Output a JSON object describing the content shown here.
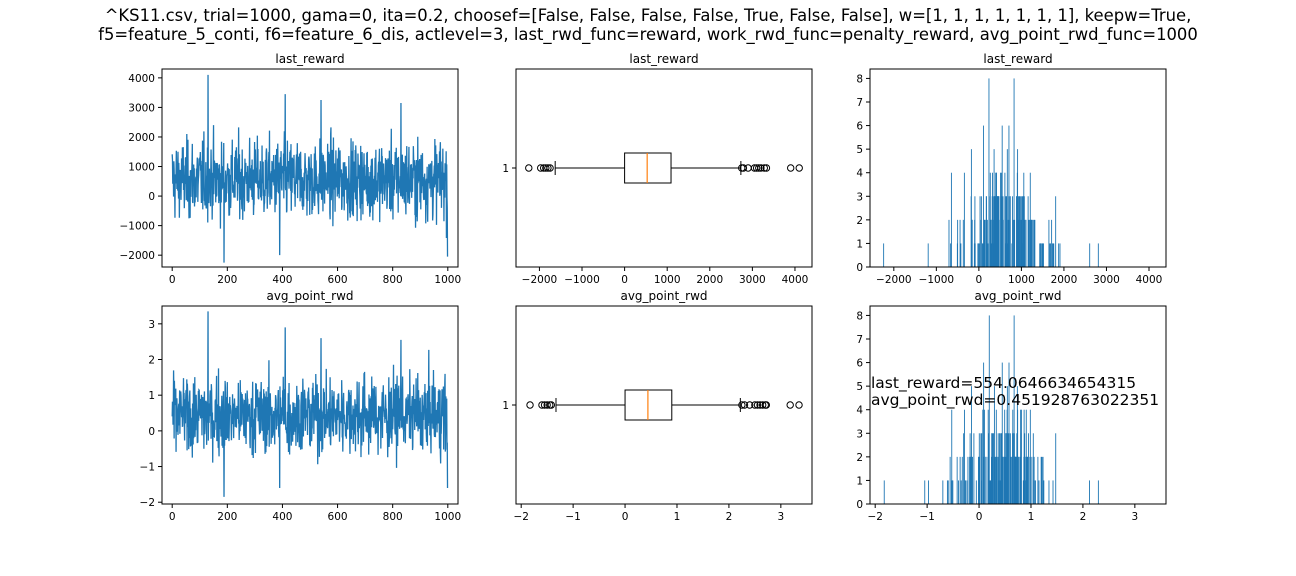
{
  "figure": {
    "title_line1": "^KS11.csv, trial=1000, gama=0, ita=0.2, choosef=[False, False, False, False, True, False, False], w=[1, 1, 1, 1, 1, 1, 1], keepw=True,",
    "title_line2": "f5=feature_5_conti, f6=feature_6_dis, actlevel=3, last_rwd_func=reward, work_rwd_func=penalty_reward, avg_point_rwd_func=1000",
    "annotation_line1": "last_reward=554.0646634654315",
    "annotation_line2": "avg_point_rwd=0.451928763022351",
    "colors": {
      "series": "#1f77b4",
      "median": "#ff7f0e",
      "axes": "#000000"
    }
  },
  "chart_data": [
    {
      "id": "series-last-reward",
      "type": "line",
      "title": "last_reward",
      "xlim": [
        -37,
        1037
      ],
      "ylim": [
        -2400,
        4300
      ],
      "xticks": [
        0,
        200,
        400,
        600,
        800,
        1000
      ],
      "xtick_labels": [
        "0",
        "200",
        "400",
        "600",
        "800",
        "1000"
      ],
      "yticks": [
        -2000,
        -1000,
        0,
        1000,
        2000,
        3000,
        4000
      ],
      "ytick_labels": [
        "−2000",
        "−1000",
        "0",
        "1000",
        "2000",
        "3000",
        "4000"
      ],
      "n_points": 1000,
      "mean": 554,
      "spread": 680,
      "min": -2250,
      "max": 4100,
      "extremes": [
        [
          130,
          4100
        ],
        [
          188,
          -2250
        ],
        [
          410,
          3450
        ],
        [
          540,
          3250
        ],
        [
          830,
          3150
        ],
        [
          1000,
          -2050
        ],
        [
          390,
          -2000
        ]
      ]
    },
    {
      "id": "box-last-reward",
      "type": "box",
      "title": "last_reward",
      "xlim": [
        -2550,
        4400
      ],
      "ylim": [
        0.5,
        1.5
      ],
      "xticks": [
        -2000,
        -1000,
        0,
        1000,
        2000,
        3000,
        4000
      ],
      "xtick_labels": [
        "−2000",
        "−1000",
        "0",
        "1000",
        "2000",
        "3000",
        "4000"
      ],
      "yticks": [
        1
      ],
      "ytick_labels": [
        "1"
      ],
      "box": {
        "q1": 0,
        "median": 530,
        "q3": 1090,
        "whisker_low": -1630,
        "whisker_high": 2730
      },
      "fliers": [
        -2250,
        -1970,
        -1900,
        -1850,
        -1800,
        -1750,
        2750,
        2790,
        2900,
        3050,
        3100,
        3150,
        3200,
        3280,
        3330,
        3900,
        4100
      ]
    },
    {
      "id": "hist-last-reward",
      "type": "bar",
      "title": "last_reward",
      "xlim": [
        -2560,
        4400
      ],
      "ylim": [
        0,
        8.4
      ],
      "xticks": [
        -2000,
        -1000,
        0,
        1000,
        2000,
        3000,
        4000
      ],
      "xtick_labels": [
        "−2000",
        "−1000",
        "0",
        "1000",
        "2000",
        "3000",
        "4000"
      ],
      "yticks": [
        0,
        1,
        2,
        3,
        4,
        5,
        6,
        7,
        8
      ],
      "ytick_labels": [
        "0",
        "1",
        "2",
        "3",
        "4",
        "5",
        "6",
        "7",
        "8"
      ],
      "range": [
        -2250,
        4100
      ],
      "bins": 1000,
      "center": 554,
      "sigma": 620,
      "peaks": [
        [
          230,
          8
        ],
        [
          820,
          8
        ],
        [
          100,
          6
        ],
        [
          540,
          6
        ],
        [
          700,
          6
        ],
        [
          -180,
          5
        ],
        [
          350,
          5
        ],
        [
          660,
          5
        ],
        [
          900,
          5
        ],
        [
          1200,
          4
        ],
        [
          -650,
          4
        ],
        [
          1050,
          4
        ],
        [
          -350,
          4
        ],
        [
          1800,
          3
        ],
        [
          -2250,
          1
        ],
        [
          2800,
          1
        ],
        [
          -1200,
          1
        ],
        [
          2600,
          1
        ]
      ]
    },
    {
      "id": "series-avg-point-rwd",
      "type": "line",
      "title": "avg_point_rwd",
      "xlim": [
        -37,
        1037
      ],
      "ylim": [
        -2.05,
        3.5
      ],
      "xticks": [
        0,
        200,
        400,
        600,
        800,
        1000
      ],
      "xtick_labels": [
        "0",
        "200",
        "400",
        "600",
        "800",
        "1000"
      ],
      "yticks": [
        -2,
        -1,
        0,
        1,
        2,
        3
      ],
      "ytick_labels": [
        "−2",
        "−1",
        "0",
        "1",
        "2",
        "3"
      ],
      "n_points": 1000,
      "mean": 0.45,
      "spread": 0.55,
      "min": -1.85,
      "max": 3.35,
      "extremes": [
        [
          130,
          3.35
        ],
        [
          188,
          -1.85
        ],
        [
          410,
          2.9
        ],
        [
          540,
          2.6
        ],
        [
          830,
          2.55
        ],
        [
          1000,
          -1.6
        ],
        [
          390,
          -1.6
        ]
      ]
    },
    {
      "id": "box-avg-point-rwd",
      "type": "box",
      "title": "avg_point_rwd",
      "xlim": [
        -2.1,
        3.6
      ],
      "ylim": [
        0.5,
        1.5
      ],
      "xticks": [
        -2,
        -1,
        0,
        1,
        2,
        3
      ],
      "xtick_labels": [
        "−2",
        "−1",
        "0",
        "1",
        "2",
        "3"
      ],
      "yticks": [
        1
      ],
      "ytick_labels": [
        "1"
      ],
      "box": {
        "q1": 0,
        "median": 0.44,
        "q3": 0.9,
        "whisker_low": -1.33,
        "whisker_high": 2.22
      },
      "fliers": [
        -1.83,
        -1.6,
        -1.55,
        -1.5,
        -1.45,
        -1.42,
        2.25,
        2.3,
        2.4,
        2.5,
        2.55,
        2.6,
        2.65,
        2.7,
        2.72,
        3.18,
        3.35
      ]
    },
    {
      "id": "hist-avg-point-rwd",
      "type": "bar",
      "title": "avg_point_rwd",
      "xlim": [
        -2.1,
        3.6
      ],
      "ylim": [
        0,
        8.4
      ],
      "xticks": [
        -2,
        -1,
        0,
        1,
        2,
        3
      ],
      "xtick_labels": [
        "−2",
        "−1",
        "0",
        "1",
        "2",
        "3"
      ],
      "yticks": [
        0,
        1,
        2,
        3,
        4,
        5,
        6,
        7,
        8
      ],
      "ytick_labels": [
        "0",
        "1",
        "2",
        "3",
        "4",
        "5",
        "6",
        "7",
        "8"
      ],
      "range": [
        -1.85,
        3.35
      ],
      "bins": 1000,
      "center": 0.45,
      "sigma": 0.5,
      "peaks": [
        [
          0.19,
          8
        ],
        [
          0.67,
          8
        ],
        [
          0.08,
          6
        ],
        [
          0.44,
          6
        ],
        [
          0.57,
          6
        ],
        [
          -0.15,
          5
        ],
        [
          0.29,
          5
        ],
        [
          0.54,
          5
        ],
        [
          0.73,
          5
        ],
        [
          0.98,
          4
        ],
        [
          -0.53,
          4
        ],
        [
          0.86,
          4
        ],
        [
          -0.29,
          4
        ],
        [
          1.47,
          3
        ],
        [
          -1.83,
          1
        ],
        [
          2.29,
          1
        ],
        [
          -0.98,
          1
        ],
        [
          2.12,
          1
        ]
      ]
    }
  ]
}
